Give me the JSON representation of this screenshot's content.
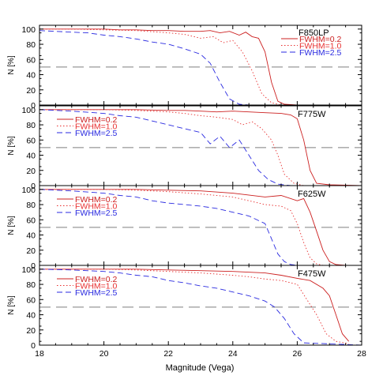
{
  "figure": {
    "xlabel": "Magnitude (Vega)",
    "ylabel": "N",
    "ylabel_unit": "[%]"
  },
  "legend_labels": [
    "FWHM=0.2",
    "FWHM=1.0",
    "FWHM=2.5"
  ],
  "colors": {
    "fwhm_0_2": "#cc2020",
    "fwhm_1_0": "#e83030",
    "fwhm_2_5": "#2a2ae0",
    "reference": "#7f7f7f",
    "axes": "#000000"
  },
  "chart_data": [
    {
      "type": "line",
      "title": "F850LP",
      "xlim": [
        18,
        28
      ],
      "ylim": [
        0,
        105
      ],
      "xticks": [
        18,
        20,
        22,
        24,
        26,
        28
      ],
      "yticks": [
        0,
        20,
        40,
        60,
        80,
        100
      ],
      "reference_line": 50,
      "legend_position": "top-right",
      "series": [
        {
          "name": "FWHM=0.2",
          "style": "solid",
          "x": [
            18,
            19,
            20,
            20.5,
            21,
            21.5,
            22,
            22.5,
            23,
            23.3,
            23.6,
            23.9,
            24.2,
            24.4,
            24.6,
            24.8,
            25.0,
            25.2,
            25.4,
            25.6,
            26,
            28
          ],
          "y": [
            100,
            100,
            100,
            99,
            99,
            98,
            98,
            97,
            97,
            98,
            95,
            97,
            92,
            96,
            90,
            88,
            70,
            30,
            5,
            1,
            0,
            0
          ]
        },
        {
          "name": "FWHM=1.0",
          "style": "dotted",
          "x": [
            18,
            19,
            20,
            21,
            22,
            22.5,
            23,
            23.4,
            23.7,
            24.0,
            24.3,
            24.6,
            24.9,
            25.2,
            25.5,
            26,
            28
          ],
          "y": [
            100,
            100,
            99,
            98,
            95,
            93,
            88,
            90,
            82,
            85,
            70,
            45,
            15,
            3,
            0,
            0,
            0
          ]
        },
        {
          "name": "FWHM=2.5",
          "style": "dashed",
          "x": [
            18,
            19,
            19.5,
            20,
            20.5,
            21,
            21.5,
            22,
            22.5,
            23,
            23.3,
            23.6,
            23.9,
            24.2,
            24.5,
            28
          ],
          "y": [
            98,
            96,
            95,
            92,
            90,
            87,
            83,
            80,
            74,
            67,
            55,
            30,
            8,
            1,
            0,
            0
          ]
        }
      ]
    },
    {
      "type": "line",
      "title": "F775W",
      "xlim": [
        18,
        28
      ],
      "ylim": [
        0,
        105
      ],
      "xticks": [
        18,
        20,
        22,
        24,
        26,
        28
      ],
      "yticks": [
        0,
        20,
        40,
        60,
        80,
        100
      ],
      "reference_line": 50,
      "legend_position": "top-left",
      "series": [
        {
          "name": "FWHM=0.2",
          "style": "solid",
          "x": [
            18,
            20,
            21,
            22,
            22.5,
            23,
            23.5,
            24,
            24.5,
            25,
            25.5,
            25.8,
            26.0,
            26.2,
            26.4,
            26.6,
            27,
            28
          ],
          "y": [
            100,
            100,
            100,
            99,
            99,
            98,
            97,
            98,
            97,
            96,
            95,
            93,
            88,
            60,
            20,
            3,
            1,
            0
          ]
        },
        {
          "name": "FWHM=1.0",
          "style": "dotted",
          "x": [
            18,
            20,
            21,
            22,
            22.5,
            23,
            23.5,
            24,
            24.3,
            24.6,
            24.9,
            25.2,
            25.4,
            25.6,
            25.9,
            26.2,
            28
          ],
          "y": [
            100,
            100,
            99,
            97,
            95,
            92,
            90,
            87,
            80,
            84,
            75,
            60,
            40,
            15,
            3,
            0,
            0
          ]
        },
        {
          "name": "FWHM=2.5",
          "style": "dashed",
          "x": [
            18,
            19,
            20,
            20.5,
            21,
            21.5,
            22,
            22.5,
            23,
            23.3,
            23.6,
            23.9,
            24.2,
            24.5,
            24.8,
            25.1,
            25.4,
            25.8,
            28
          ],
          "y": [
            100,
            98,
            95,
            92,
            90,
            85,
            80,
            75,
            70,
            55,
            65,
            50,
            60,
            40,
            20,
            8,
            2,
            0,
            0
          ]
        }
      ]
    },
    {
      "type": "line",
      "title": "F625W",
      "xlim": [
        18,
        28
      ],
      "ylim": [
        0,
        105
      ],
      "xticks": [
        18,
        20,
        22,
        24,
        26,
        28
      ],
      "yticks": [
        0,
        20,
        40,
        60,
        80,
        100
      ],
      "reference_line": 50,
      "legend_position": "top-left",
      "series": [
        {
          "name": "FWHM=0.2",
          "style": "solid",
          "x": [
            18,
            20,
            21,
            22,
            23,
            24,
            25,
            25.5,
            26,
            26.2,
            26.4,
            26.6,
            26.8,
            27.0,
            27.2,
            27.5,
            28
          ],
          "y": [
            100,
            100,
            100,
            99,
            98,
            95,
            90,
            92,
            85,
            88,
            70,
            45,
            20,
            5,
            1,
            0,
            0
          ]
        },
        {
          "name": "FWHM=1.0",
          "style": "dotted",
          "x": [
            18,
            20,
            21,
            22,
            23,
            24,
            24.5,
            25,
            25.5,
            25.8,
            26.0,
            26.2,
            26.4,
            26.6,
            26.8,
            28
          ],
          "y": [
            100,
            100,
            99,
            97,
            94,
            90,
            85,
            80,
            78,
            72,
            55,
            30,
            10,
            2,
            0,
            0
          ]
        },
        {
          "name": "FWHM=2.5",
          "style": "dashed",
          "x": [
            18,
            19,
            20,
            20.5,
            21,
            21.5,
            22,
            22.5,
            23,
            23.5,
            24,
            24.5,
            25,
            25.2,
            25.4,
            25.6,
            25.8,
            26,
            28
          ],
          "y": [
            100,
            98,
            95,
            92,
            90,
            85,
            82,
            80,
            78,
            75,
            70,
            65,
            55,
            35,
            15,
            5,
            1,
            0,
            0
          ]
        }
      ]
    },
    {
      "type": "line",
      "title": "F475W",
      "xlim": [
        18,
        28
      ],
      "ylim": [
        0,
        105
      ],
      "xticks": [
        18,
        20,
        22,
        24,
        26,
        28
      ],
      "yticks": [
        0,
        20,
        40,
        60,
        80,
        100
      ],
      "reference_line": 50,
      "legend_position": "top-left",
      "series": [
        {
          "name": "FWHM=0.2",
          "style": "solid",
          "x": [
            18,
            20,
            21,
            22,
            23,
            24,
            25,
            25.5,
            26,
            26.4,
            26.8,
            27.0,
            27.2,
            27.4,
            27.6
          ],
          "y": [
            100,
            100,
            100,
            99,
            98,
            97,
            95,
            92,
            88,
            85,
            75,
            65,
            40,
            15,
            5
          ]
        },
        {
          "name": "FWHM=1.0",
          "style": "dotted",
          "x": [
            18,
            20,
            21,
            22,
            23,
            24,
            24.5,
            25,
            25.5,
            26,
            26.3,
            26.6,
            26.9,
            27.2,
            27.6
          ],
          "y": [
            100,
            100,
            99,
            97,
            95,
            92,
            90,
            87,
            85,
            80,
            60,
            40,
            15,
            5,
            2
          ]
        },
        {
          "name": "FWHM=2.5",
          "style": "dashed",
          "x": [
            18,
            19,
            20,
            20.5,
            21,
            21.5,
            22,
            22.5,
            23,
            23.5,
            24,
            24.5,
            25,
            25.3,
            25.6,
            25.9,
            26.2,
            28
          ],
          "y": [
            100,
            99,
            97,
            95,
            92,
            90,
            85,
            82,
            78,
            75,
            70,
            65,
            58,
            50,
            35,
            15,
            3,
            0
          ]
        }
      ]
    }
  ]
}
